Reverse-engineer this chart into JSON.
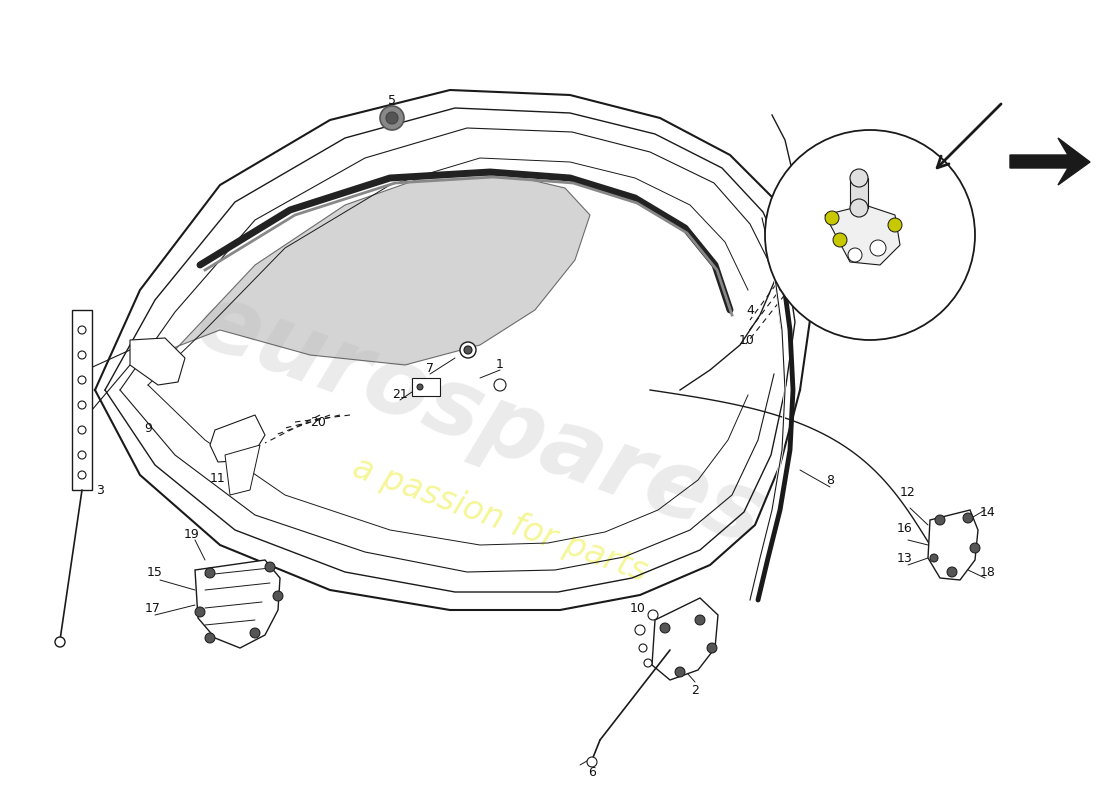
{
  "background_color": "#ffffff",
  "line_color": "#1a1a1a",
  "watermark_text1": "eurospares",
  "watermark_text2": "a passion for parts",
  "figsize": [
    11.0,
    8.0
  ],
  "dpi": 100
}
